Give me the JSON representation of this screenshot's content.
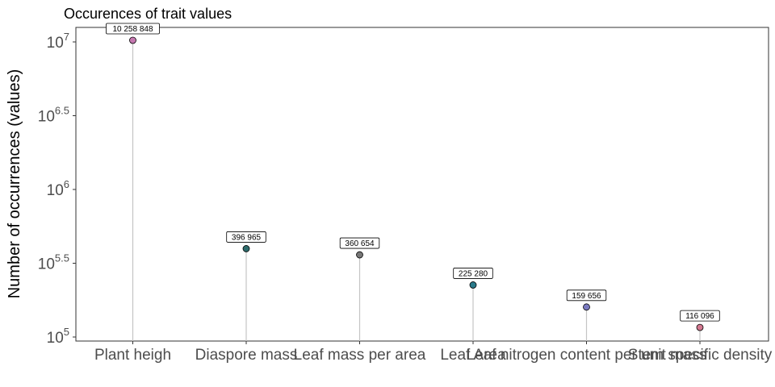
{
  "chart_data": {
    "type": "scatter",
    "title": "Occurences of trait values",
    "xlabel": "",
    "ylabel": "Number of occurrences (values)",
    "y_scale": "log10",
    "ylim": [
      100000,
      10000000
    ],
    "y_ticks": [
      {
        "base": "10",
        "exp": "5"
      },
      {
        "base": "10",
        "exp": "5.5"
      },
      {
        "base": "10",
        "exp": "6"
      },
      {
        "base": "10",
        "exp": "6.5"
      },
      {
        "base": "10",
        "exp": "7"
      }
    ],
    "categories": [
      "Plant heigh",
      "Diaspore mass",
      "Leaf mass per area",
      "Leaf Area",
      "Leaf nitrogen content per unit mass",
      "Stem specific density"
    ],
    "values": [
      10258848,
      396965,
      360654,
      225280,
      159656,
      116096
    ],
    "labels": [
      "10 258 848",
      "396 965",
      "360 654",
      "225 280",
      "159 656",
      "116 096"
    ],
    "colors": [
      "#c678b0",
      "#2d6b6b",
      "#777777",
      "#2a7a8a",
      "#7a7ac0",
      "#d27890"
    ],
    "grid": false,
    "legend": "none"
  }
}
